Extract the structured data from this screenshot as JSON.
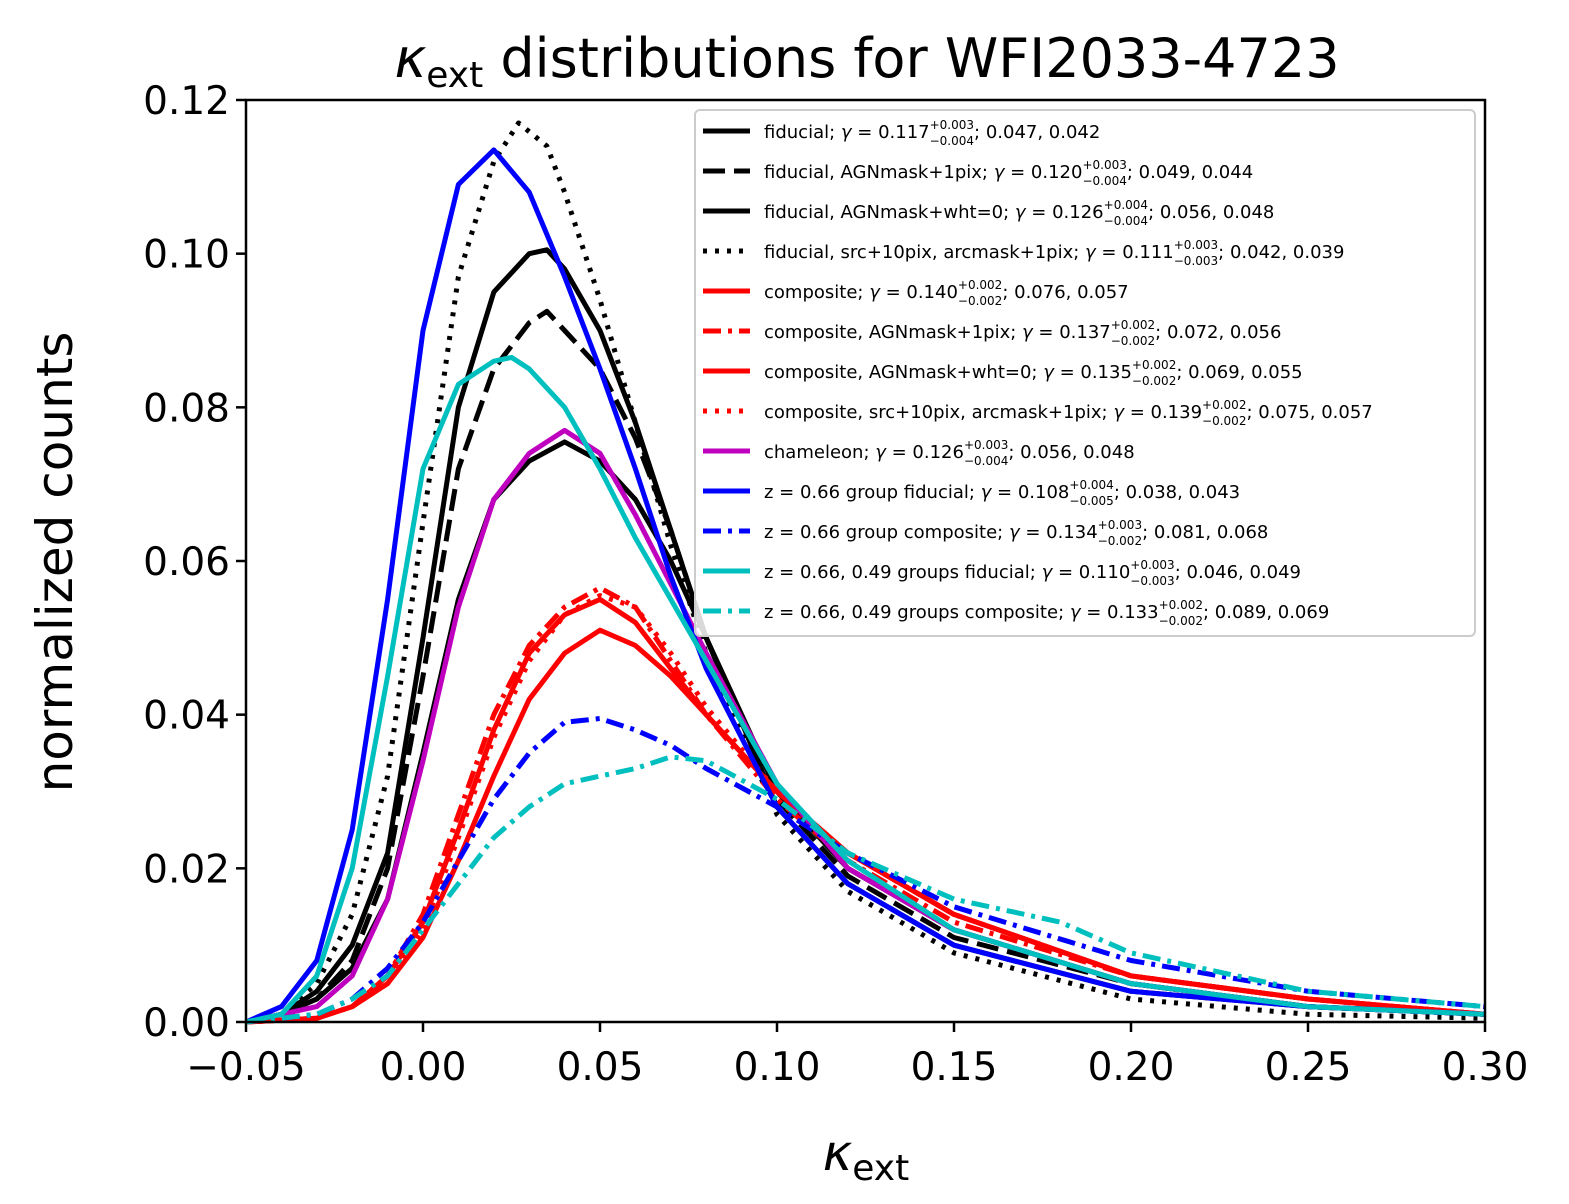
{
  "chart_data": {
    "type": "line",
    "title_symbol": "κ",
    "title_subscript": "ext",
    "title_rest": " distributions for WFI2033-4723",
    "xlabel_symbol": "κ",
    "xlabel_subscript": "ext",
    "ylabel": "normalized counts",
    "xlim": [
      -0.05,
      0.3
    ],
    "ylim": [
      0.0,
      0.12
    ],
    "xticks": [
      "−0.05",
      "0.00",
      "0.05",
      "0.10",
      "0.15",
      "0.20",
      "0.25",
      "0.30"
    ],
    "yticks": [
      "0.00",
      "0.02",
      "0.04",
      "0.06",
      "0.08",
      "0.10",
      "0.12"
    ],
    "legend_position": "top-right",
    "series": [
      {
        "label": "fiducial; γ = 0.117(+0.003/−0.004); 0.047, 0.042",
        "legend_pre": "fiducial; ",
        "gamma": "0.117",
        "sup": "+0.003",
        "sub": "−0.004",
        "legend_post": "; 0.047, 0.042",
        "color": "#000000",
        "style": "solid",
        "x": [
          -0.05,
          -0.04,
          -0.03,
          -0.02,
          -0.01,
          0.0,
          0.01,
          0.02,
          0.03,
          0.035,
          0.04,
          0.05,
          0.06,
          0.07,
          0.08,
          0.1,
          0.12,
          0.15,
          0.2,
          0.25,
          0.3
        ],
        "y": [
          0.0,
          0.001,
          0.004,
          0.01,
          0.022,
          0.05,
          0.08,
          0.095,
          0.1,
          0.1005,
          0.098,
          0.09,
          0.078,
          0.064,
          0.05,
          0.028,
          0.018,
          0.01,
          0.004,
          0.002,
          0.001
        ]
      },
      {
        "label": "fiducial, AGNmask+1pix; γ = 0.120(+0.003/−0.004); 0.049, 0.044",
        "legend_pre": "fiducial, AGNmask+1pix; ",
        "gamma": "0.120",
        "sup": "+0.003",
        "sub": "−0.004",
        "legend_post": "; 0.049, 0.044",
        "color": "#000000",
        "style": "dashed",
        "x": [
          -0.05,
          -0.04,
          -0.03,
          -0.02,
          -0.01,
          0.0,
          0.01,
          0.02,
          0.03,
          0.035,
          0.04,
          0.05,
          0.06,
          0.07,
          0.08,
          0.1,
          0.12,
          0.15,
          0.2,
          0.25,
          0.3
        ],
        "y": [
          0.0,
          0.001,
          0.003,
          0.008,
          0.02,
          0.045,
          0.072,
          0.085,
          0.091,
          0.0925,
          0.09,
          0.085,
          0.076,
          0.064,
          0.05,
          0.029,
          0.019,
          0.011,
          0.005,
          0.002,
          0.001
        ]
      },
      {
        "label": "fiducial, AGNmask+wht=0; γ = 0.126(+0.004/−0.004); 0.056, 0.048",
        "legend_pre": "fiducial, AGNmask+wht=0; ",
        "gamma": "0.126",
        "sup": "+0.004",
        "sub": "−0.004",
        "legend_post": "; 0.056, 0.048",
        "color": "#000000",
        "style": "solid",
        "x": [
          -0.05,
          -0.04,
          -0.03,
          -0.02,
          -0.01,
          0.0,
          0.01,
          0.02,
          0.03,
          0.04,
          0.05,
          0.06,
          0.07,
          0.08,
          0.1,
          0.12,
          0.15,
          0.2,
          0.25,
          0.3
        ],
        "y": [
          0.0,
          0.001,
          0.003,
          0.007,
          0.016,
          0.035,
          0.055,
          0.068,
          0.073,
          0.0755,
          0.073,
          0.068,
          0.06,
          0.05,
          0.03,
          0.02,
          0.012,
          0.005,
          0.002,
          0.001
        ]
      },
      {
        "label": "fiducial, src+10pix, arcmask+1pix; γ = 0.111(+0.003/−0.003); 0.042, 0.039",
        "legend_pre": "fiducial, src+10pix, arcmask+1pix; ",
        "gamma": "0.111",
        "sup": "+0.003",
        "sub": "−0.003",
        "legend_post": "; 0.042, 0.039",
        "color": "#000000",
        "style": "dotted",
        "x": [
          -0.05,
          -0.04,
          -0.03,
          -0.02,
          -0.01,
          0.0,
          0.01,
          0.02,
          0.027,
          0.035,
          0.04,
          0.05,
          0.06,
          0.07,
          0.08,
          0.1,
          0.12,
          0.15,
          0.2,
          0.25,
          0.3
        ],
        "y": [
          0.0,
          0.001,
          0.005,
          0.014,
          0.032,
          0.065,
          0.097,
          0.112,
          0.117,
          0.114,
          0.108,
          0.094,
          0.078,
          0.062,
          0.048,
          0.027,
          0.017,
          0.009,
          0.003,
          0.001,
          0.0005
        ]
      },
      {
        "label": "composite; γ = 0.140(+0.002/−0.002); 0.076, 0.057",
        "legend_pre": "composite; ",
        "gamma": "0.140",
        "sup": "+0.002",
        "sub": "−0.002",
        "legend_post": "; 0.076, 0.057",
        "color": "#ff0000",
        "style": "solid",
        "x": [
          -0.05,
          -0.03,
          -0.02,
          -0.01,
          0.0,
          0.01,
          0.02,
          0.03,
          0.04,
          0.05,
          0.06,
          0.07,
          0.08,
          0.1,
          0.12,
          0.15,
          0.2,
          0.25,
          0.3
        ],
        "y": [
          0.0,
          0.0005,
          0.002,
          0.005,
          0.011,
          0.021,
          0.032,
          0.042,
          0.048,
          0.051,
          0.049,
          0.045,
          0.04,
          0.03,
          0.022,
          0.014,
          0.006,
          0.003,
          0.001
        ]
      },
      {
        "label": "composite, AGNmask+1pix; γ = 0.137(+0.002/−0.002); 0.072, 0.056",
        "legend_pre": "composite, AGNmask+1pix; ",
        "gamma": "0.137",
        "sup": "+0.002",
        "sub": "−0.002",
        "legend_post": "; 0.072, 0.056",
        "color": "#ff0000",
        "style": "dashdot",
        "x": [
          -0.05,
          -0.03,
          -0.02,
          -0.01,
          0.0,
          0.01,
          0.02,
          0.03,
          0.04,
          0.05,
          0.06,
          0.07,
          0.08,
          0.1,
          0.12,
          0.15,
          0.2,
          0.25,
          0.3
        ],
        "y": [
          0.0,
          0.0005,
          0.002,
          0.006,
          0.014,
          0.027,
          0.04,
          0.049,
          0.054,
          0.0565,
          0.054,
          0.047,
          0.04,
          0.029,
          0.021,
          0.013,
          0.006,
          0.003,
          0.001
        ]
      },
      {
        "label": "composite, AGNmask+wht=0; γ = 0.135(+0.002/−0.002); 0.069, 0.055",
        "legend_pre": "composite, AGNmask+wht=0; ",
        "gamma": "0.135",
        "sup": "+0.002",
        "sub": "−0.002",
        "legend_post": "; 0.069, 0.055",
        "color": "#ff0000",
        "style": "solid",
        "x": [
          -0.05,
          -0.03,
          -0.02,
          -0.01,
          0.0,
          0.01,
          0.02,
          0.03,
          0.04,
          0.05,
          0.06,
          0.07,
          0.08,
          0.1,
          0.12,
          0.15,
          0.2,
          0.25,
          0.3
        ],
        "y": [
          0.0,
          0.0005,
          0.002,
          0.006,
          0.013,
          0.025,
          0.038,
          0.048,
          0.053,
          0.055,
          0.052,
          0.046,
          0.04,
          0.03,
          0.022,
          0.014,
          0.006,
          0.003,
          0.001
        ]
      },
      {
        "label": "composite, src+10pix, arcmask+1pix; γ = 0.139(+0.002/−0.002); 0.075, 0.057",
        "legend_pre": "composite, src+10pix, arcmask+1pix; ",
        "gamma": "0.139",
        "sup": "+0.002",
        "sub": "−0.002",
        "legend_post": "; 0.075, 0.057",
        "color": "#ff0000",
        "style": "dotted",
        "x": [
          -0.05,
          -0.03,
          -0.02,
          -0.01,
          0.0,
          0.01,
          0.02,
          0.03,
          0.04,
          0.05,
          0.06,
          0.07,
          0.08,
          0.1,
          0.12,
          0.15,
          0.2,
          0.25,
          0.3
        ],
        "y": [
          0.0,
          0.0005,
          0.002,
          0.005,
          0.012,
          0.024,
          0.037,
          0.047,
          0.053,
          0.0555,
          0.054,
          0.048,
          0.041,
          0.03,
          0.022,
          0.014,
          0.006,
          0.003,
          0.001
        ]
      },
      {
        "label": "chameleon; γ = 0.126(+0.003/−0.004); 0.056, 0.048",
        "legend_pre": "chameleon; ",
        "gamma": "0.126",
        "sup": "+0.003",
        "sub": "−0.004",
        "legend_post": "; 0.056, 0.048",
        "color": "#bf00bf",
        "style": "solid",
        "x": [
          -0.05,
          -0.03,
          -0.02,
          -0.01,
          0.0,
          0.01,
          0.02,
          0.03,
          0.04,
          0.05,
          0.06,
          0.07,
          0.08,
          0.1,
          0.12,
          0.15,
          0.2,
          0.25,
          0.3
        ],
        "y": [
          0.0,
          0.002,
          0.006,
          0.016,
          0.034,
          0.054,
          0.068,
          0.074,
          0.077,
          0.074,
          0.066,
          0.057,
          0.048,
          0.031,
          0.02,
          0.012,
          0.005,
          0.002,
          0.001
        ]
      },
      {
        "label": "z = 0.66 group fiducial; γ = 0.108(+0.004/−0.005); 0.038, 0.043",
        "legend_pre": "z = 0.66 group fiducial; ",
        "gamma": "0.108",
        "sup": "+0.004",
        "sub": "−0.005",
        "legend_post": "; 0.038, 0.043",
        "color": "#0000ff",
        "style": "solid",
        "x": [
          -0.05,
          -0.04,
          -0.03,
          -0.02,
          -0.01,
          0.0,
          0.01,
          0.02,
          0.03,
          0.04,
          0.05,
          0.06,
          0.07,
          0.08,
          0.1,
          0.12,
          0.15,
          0.2,
          0.25,
          0.3
        ],
        "y": [
          0.0,
          0.002,
          0.008,
          0.025,
          0.055,
          0.09,
          0.109,
          0.1135,
          0.108,
          0.097,
          0.085,
          0.072,
          0.058,
          0.046,
          0.028,
          0.018,
          0.01,
          0.004,
          0.002,
          0.001
        ]
      },
      {
        "label": "z = 0.66 group composite; γ = 0.134(+0.003/−0.002); 0.081, 0.068",
        "legend_pre": "z = 0.66 group composite; ",
        "gamma": "0.134",
        "sup": "+0.003",
        "sub": "−0.002",
        "legend_post": "; 0.081, 0.068",
        "color": "#0000ff",
        "style": "dashdot",
        "x": [
          -0.05,
          -0.03,
          -0.02,
          -0.01,
          0.0,
          0.01,
          0.02,
          0.03,
          0.04,
          0.05,
          0.06,
          0.07,
          0.08,
          0.1,
          0.12,
          0.15,
          0.2,
          0.25,
          0.3
        ],
        "y": [
          0.0,
          0.001,
          0.003,
          0.007,
          0.013,
          0.021,
          0.029,
          0.035,
          0.039,
          0.0395,
          0.038,
          0.036,
          0.033,
          0.028,
          0.022,
          0.015,
          0.008,
          0.004,
          0.002
        ]
      },
      {
        "label": "z = 0.66, 0.49 groups fiducial; γ = 0.110(+0.003/−0.003); 0.046, 0.049",
        "legend_pre": "z = 0.66, 0.49 groups fiducial; ",
        "gamma": "0.110",
        "sup": "+0.003",
        "sub": "−0.003",
        "legend_post": "; 0.046, 0.049",
        "color": "#00bfbf",
        "style": "solid",
        "x": [
          -0.05,
          -0.04,
          -0.03,
          -0.02,
          -0.01,
          0.0,
          0.01,
          0.02,
          0.025,
          0.03,
          0.04,
          0.05,
          0.06,
          0.07,
          0.08,
          0.1,
          0.12,
          0.15,
          0.2,
          0.25,
          0.3
        ],
        "y": [
          0.0,
          0.001,
          0.006,
          0.02,
          0.045,
          0.072,
          0.083,
          0.086,
          0.0865,
          0.085,
          0.08,
          0.072,
          0.063,
          0.055,
          0.047,
          0.031,
          0.021,
          0.012,
          0.005,
          0.002,
          0.001
        ]
      },
      {
        "label": "z = 0.66, 0.49 groups composite; γ = 0.133(+0.002/−0.002); 0.089, 0.069",
        "legend_pre": "z = 0.66, 0.49 groups composite; ",
        "gamma": "0.133",
        "sup": "+0.002",
        "sub": "−0.002",
        "legend_post": "; 0.089, 0.069",
        "color": "#00bfbf",
        "style": "dashdot",
        "x": [
          -0.05,
          -0.03,
          -0.02,
          -0.01,
          0.0,
          0.01,
          0.02,
          0.03,
          0.04,
          0.05,
          0.06,
          0.07,
          0.08,
          0.1,
          0.12,
          0.15,
          0.18,
          0.2,
          0.25,
          0.3
        ],
        "y": [
          0.0,
          0.001,
          0.003,
          0.006,
          0.012,
          0.018,
          0.024,
          0.028,
          0.031,
          0.032,
          0.033,
          0.0345,
          0.034,
          0.029,
          0.022,
          0.016,
          0.013,
          0.009,
          0.004,
          0.002
        ]
      }
    ]
  }
}
